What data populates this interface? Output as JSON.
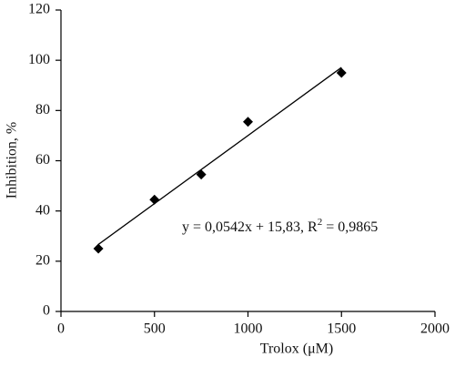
{
  "chart_data": {
    "type": "scatter",
    "x_label": "Trolox (μM)",
    "y_label": "Inhibition, %",
    "x": [
      200,
      500,
      750,
      1000,
      1500
    ],
    "values": [
      25,
      44.5,
      54.5,
      75.5,
      95
    ],
    "color": "#000000",
    "xlim": [
      0,
      2000
    ],
    "xticks": [
      0,
      500,
      1000,
      1500,
      2000
    ],
    "ylim": [
      0,
      120
    ],
    "yticks": [
      0,
      20,
      40,
      60,
      80,
      100,
      120
    ],
    "grid": false,
    "trendline": {
      "slope": 0.0542,
      "intercept": 15.83,
      "color": "#000000"
    },
    "annotation": [
      "y = 0,0542x + 15,83, R",
      "2",
      " = 0,9865"
    ]
  }
}
